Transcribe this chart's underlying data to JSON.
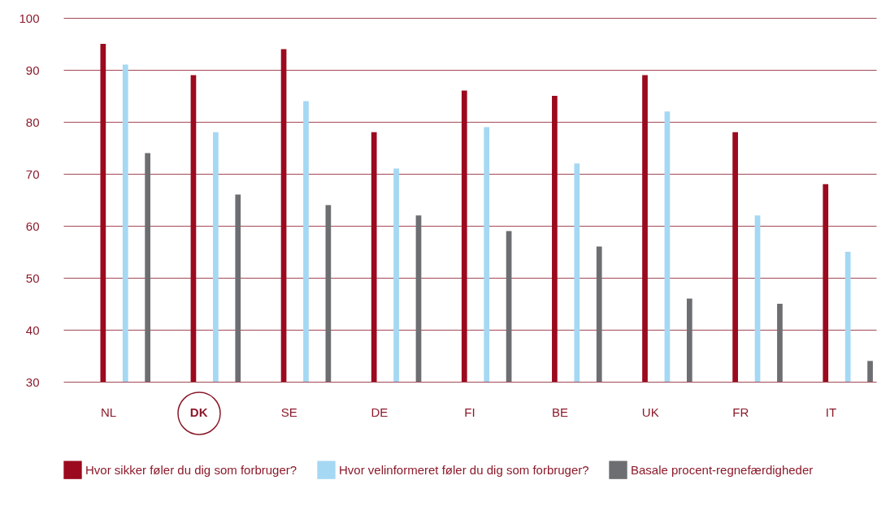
{
  "chart_data": {
    "type": "bar",
    "categories": [
      "NL",
      "DK",
      "SE",
      "DE",
      "FI",
      "BE",
      "UK",
      "FR",
      "IT"
    ],
    "series": [
      {
        "name": "Hvor sikker føler du dig som forbruger?",
        "color": "#9b0a1e",
        "values": [
          95,
          89,
          94,
          78,
          86,
          85,
          89,
          78,
          68
        ]
      },
      {
        "name": "Hvor velinformeret føler du dig som forbruger?",
        "color": "#a5d8f3",
        "values": [
          91,
          78,
          84,
          71,
          79,
          72,
          82,
          62,
          55
        ]
      },
      {
        "name": "Basale procent-regnefærdigheder",
        "color": "#6d6e71",
        "values": [
          74,
          66,
          64,
          62,
          59,
          56,
          46,
          45,
          34
        ]
      }
    ],
    "ylim": [
      30,
      100
    ],
    "yticks": [
      30,
      40,
      50,
      60,
      70,
      80,
      90,
      100
    ],
    "grid": "y",
    "legend": "bottom"
  }
}
